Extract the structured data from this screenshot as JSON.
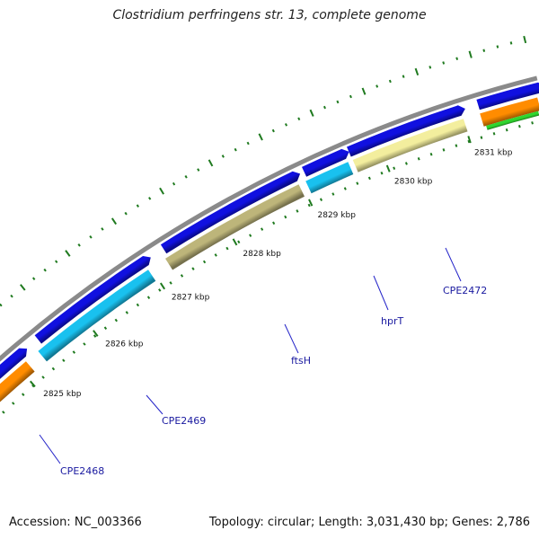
{
  "title": "Clostridium perfringens str. 13, complete genome",
  "accession_text": "Accession: NC_003366",
  "summary_text": "Topology: circular; Length: 3,031,430 bp; Genes: 2,786",
  "colors": {
    "backbone": "#8a8a8a",
    "cds_forward": "#1010e0",
    "tick": "#1f7a1f",
    "gene_label": "#1a1aa0",
    "leader": "#2323c8"
  },
  "ticks": [
    {
      "label": "2825 kbp"
    },
    {
      "label": "2826 kbp"
    },
    {
      "label": "2827 kbp"
    },
    {
      "label": "2828 kbp"
    },
    {
      "label": "2829 kbp"
    },
    {
      "label": "2830 kbp"
    },
    {
      "label": "2831 kbp"
    }
  ],
  "gene_labels": [
    {
      "name": "CPE2468"
    },
    {
      "name": "CPE2469"
    },
    {
      "name": "ftsH"
    },
    {
      "name": "hprT"
    },
    {
      "name": "CPE2472"
    }
  ]
}
